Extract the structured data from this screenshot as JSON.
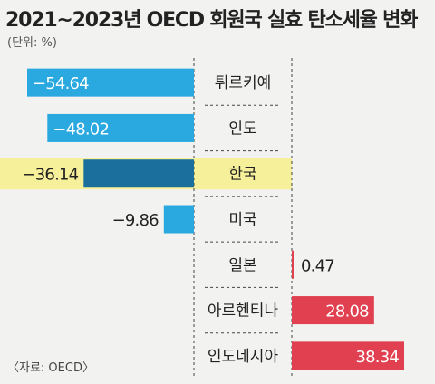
{
  "title": "2021~2023년 OECD 회원국 실효 탄소세율 변화",
  "unit": "(단위: %)",
  "source": "〈자료: OECD〉",
  "chart_data": {
    "type": "bar",
    "orientation": "horizontal",
    "title": "2021~2023년 OECD 회원국 실효 탄소세율 변화",
    "categories": [
      "튀르키예",
      "인도",
      "한국",
      "미국",
      "일본",
      "아르헨티나",
      "인도네시아"
    ],
    "values": [
      -54.64,
      -48.02,
      -36.14,
      -9.86,
      0.47,
      28.08,
      38.34
    ],
    "value_labels": [
      "−54.64",
      "−48.02",
      "−36.14",
      "−9.86",
      "0.47",
      "28.08",
      "38.34"
    ],
    "highlight": "한국",
    "colors": {
      "negative": "#2aa8e0",
      "highlight_bar": "#1a6f9c",
      "highlight_band": "#f7f09a",
      "positive": "#e0404f"
    }
  }
}
